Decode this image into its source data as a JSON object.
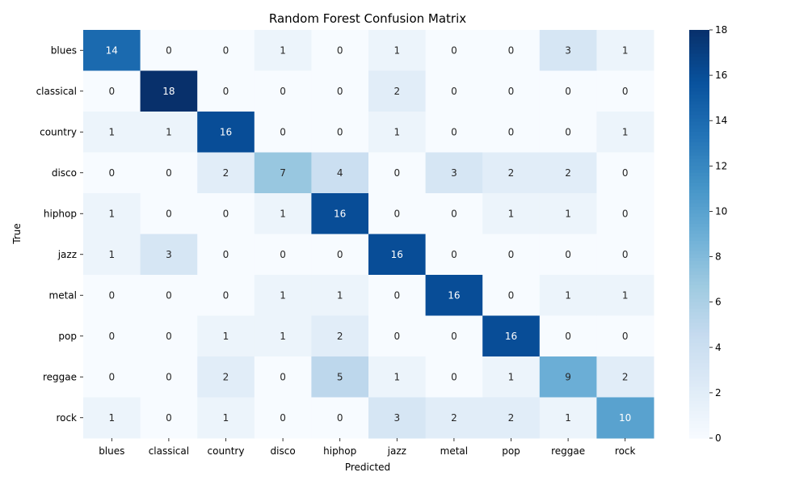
{
  "chart_data": {
    "type": "heatmap",
    "title": "Random Forest Confusion Matrix",
    "xlabel": "Predicted",
    "ylabel": "True",
    "x_categories": [
      "blues",
      "classical",
      "country",
      "disco",
      "hiphop",
      "jazz",
      "metal",
      "pop",
      "reggae",
      "rock"
    ],
    "y_categories": [
      "blues",
      "classical",
      "country",
      "disco",
      "hiphop",
      "jazz",
      "metal",
      "pop",
      "reggae",
      "rock"
    ],
    "values": [
      [
        14,
        0,
        0,
        1,
        0,
        1,
        0,
        0,
        3,
        1
      ],
      [
        0,
        18,
        0,
        0,
        0,
        2,
        0,
        0,
        0,
        0
      ],
      [
        1,
        1,
        16,
        0,
        0,
        1,
        0,
        0,
        0,
        1
      ],
      [
        0,
        0,
        2,
        7,
        4,
        0,
        3,
        2,
        2,
        0
      ],
      [
        1,
        0,
        0,
        1,
        16,
        0,
        0,
        1,
        1,
        0
      ],
      [
        1,
        3,
        0,
        0,
        0,
        16,
        0,
        0,
        0,
        0
      ],
      [
        0,
        0,
        0,
        1,
        1,
        0,
        16,
        0,
        1,
        1
      ],
      [
        0,
        0,
        1,
        1,
        2,
        0,
        0,
        16,
        0,
        0
      ],
      [
        0,
        0,
        2,
        0,
        5,
        1,
        0,
        1,
        9,
        2
      ],
      [
        1,
        0,
        1,
        0,
        0,
        3,
        2,
        2,
        1,
        10
      ]
    ],
    "colorbar": {
      "min": 0,
      "max": 18,
      "ticks": [
        0,
        2,
        4,
        6,
        8,
        10,
        12,
        14,
        16,
        18
      ],
      "colormap": "Blues"
    },
    "annotations": true,
    "grid": false
  }
}
